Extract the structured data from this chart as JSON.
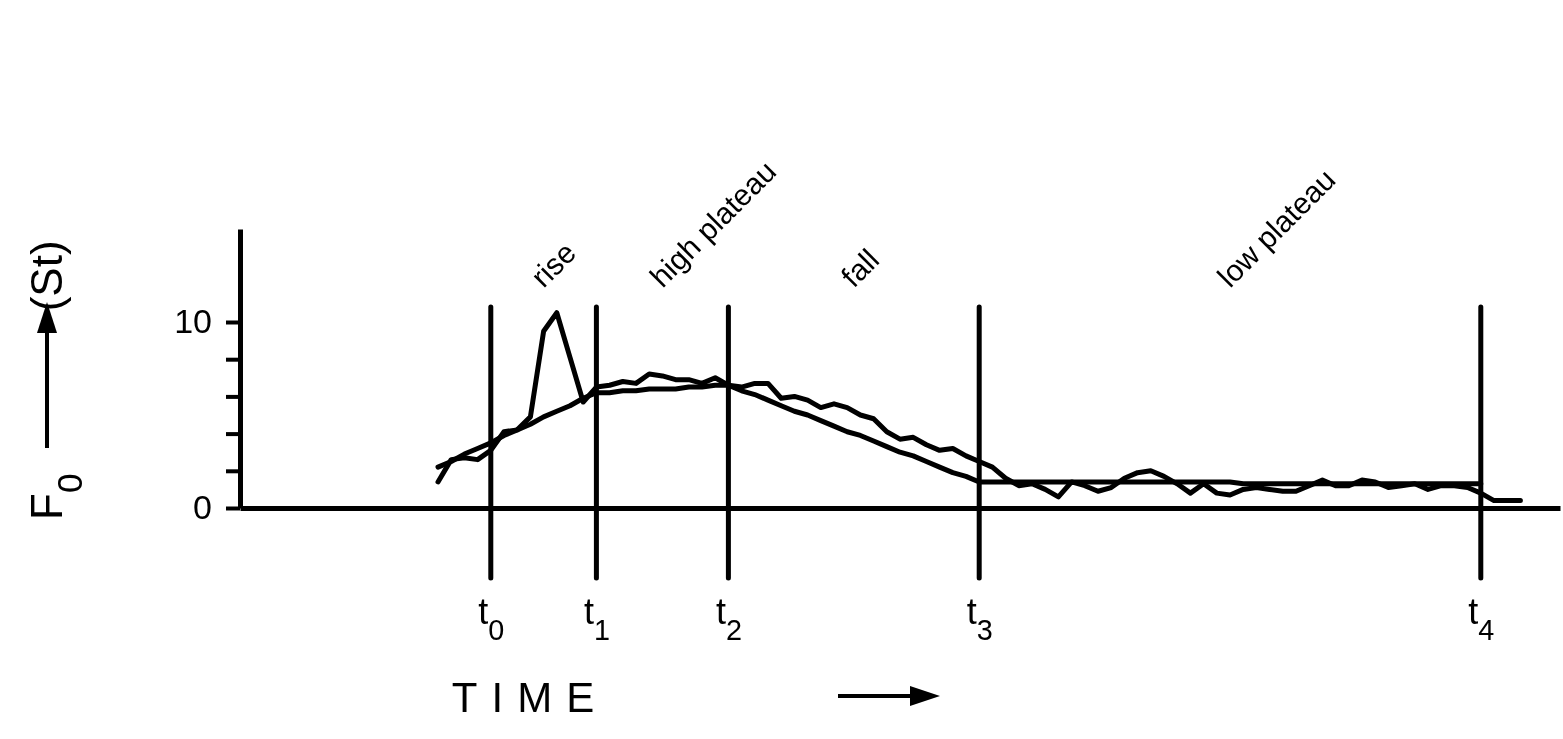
{
  "chart_data": {
    "type": "line",
    "xlabel": "TIME",
    "ylabel": "F$_{0}$ (St)",
    "categories": [
      null,
      null,
      null,
      null,
      null,
      null,
      null,
      null,
      null,
      null,
      null,
      null,
      null,
      null,
      null,
      null,
      null,
      null,
      null,
      "t$_{0}$",
      null,
      null,
      null,
      null,
      null,
      null,
      null,
      "t$_{1}$",
      null,
      null,
      null,
      null,
      null,
      null,
      null,
      null,
      null,
      "t$_{2}$",
      null,
      null,
      null,
      null,
      null,
      null,
      null,
      null,
      null,
      null,
      null,
      null,
      null,
      null,
      null,
      null,
      null,
      null,
      "t$_{3}$",
      null,
      null,
      null,
      null,
      null,
      null,
      null,
      null,
      null,
      null,
      null,
      null,
      null,
      null,
      null,
      null,
      null,
      null,
      null,
      null,
      null,
      null,
      null,
      null,
      null,
      null,
      null,
      null,
      null,
      null,
      null,
      null,
      null,
      null,
      null,
      null,
      null,
      "t$_{4}$",
      null,
      null,
      null,
      null,
      null,
      null
    ],
    "ylim": [
      0,
      15
    ],
    "yticks": [
      0,
      {
        "value": 2,
        "label": null
      },
      {
        "value": 4,
        "label": null
      },
      {
        "value": 6,
        "label": null
      },
      {
        "value": 8,
        "label": null
      },
      10
    ],
    "grid": false,
    "marker": "none",
    "line_style": "solid",
    "series": [
      {
        "color": "#000000",
        "values": [
          null,
          null,
          null,
          null,
          null,
          null,
          null,
          null,
          null,
          null,
          null,
          null,
          null,
          null,
          null,
          1.4,
          2.6,
          2.7,
          2.6,
          3.1,
          4.1,
          4.2,
          4.9,
          9.5,
          10.5,
          8.1,
          5.7,
          6.5,
          6.6,
          6.8,
          6.7,
          7.2,
          7.1,
          6.9,
          6.9,
          6.7,
          7.0,
          6.6,
          6.5,
          6.7,
          6.7,
          5.9,
          6.0,
          5.8,
          5.4,
          5.6,
          5.4,
          5.0,
          4.8,
          4.1,
          3.7,
          3.8,
          3.4,
          3.1,
          3.2,
          2.8,
          2.5,
          2.2,
          1.6,
          1.2,
          1.3,
          1.0,
          0.6,
          1.4,
          1.2,
          0.9,
          1.1,
          1.6,
          1.9,
          2.0,
          1.7,
          1.3,
          0.8,
          1.3,
          0.8,
          0.7,
          1.0,
          1.1,
          1.0,
          0.9,
          0.9,
          1.2,
          1.5,
          1.2,
          1.2,
          1.5,
          1.4,
          1.1,
          1.2,
          1.3,
          1.0,
          1.2,
          1.2,
          1.1,
          0.8,
          0.4,
          0.4,
          0.4,
          null,
          null,
          null
        ]
      },
      {
        "color": "#000000",
        "values": [
          null,
          null,
          null,
          null,
          null,
          null,
          null,
          null,
          null,
          null,
          null,
          null,
          null,
          null,
          null,
          2.2,
          2.5,
          2.9,
          3.2,
          3.5,
          3.9,
          4.2,
          4.5,
          4.9,
          5.2,
          5.5,
          5.9,
          6.2,
          6.2,
          6.3,
          6.3,
          6.4,
          6.4,
          6.4,
          6.5,
          6.5,
          6.6,
          6.6,
          6.3,
          6.1,
          5.8,
          5.5,
          5.2,
          5.0,
          4.7,
          4.4,
          4.1,
          3.9,
          3.6,
          3.3,
          3.0,
          2.8,
          2.5,
          2.2,
          1.9,
          1.7,
          1.4,
          1.4,
          1.4,
          1.4,
          1.4,
          1.4,
          1.4,
          1.4,
          1.4,
          1.4,
          1.4,
          1.4,
          1.4,
          1.4,
          1.4,
          1.4,
          1.4,
          1.4,
          1.4,
          1.4,
          1.3,
          1.3,
          1.3,
          1.3,
          1.3,
          1.3,
          1.3,
          1.3,
          1.3,
          1.3,
          1.3,
          1.3,
          1.3,
          1.3,
          1.3,
          1.3,
          1.3,
          1.3,
          1.3,
          null,
          null,
          null,
          null,
          null,
          null
        ]
      }
    ],
    "ref_lines": [
      {
        "axis": "x",
        "value": "t$_{0}$"
      },
      {
        "axis": "x",
        "value": "t$_{1}$"
      },
      {
        "axis": "x",
        "value": "t$_{2}$"
      },
      {
        "axis": "x",
        "value": "t$_{3}$"
      },
      {
        "axis": "x",
        "value": "t$_{4}$"
      }
    ],
    "annotations": [
      "rise",
      "high plateau",
      "fall",
      "low plateau"
    ]
  }
}
